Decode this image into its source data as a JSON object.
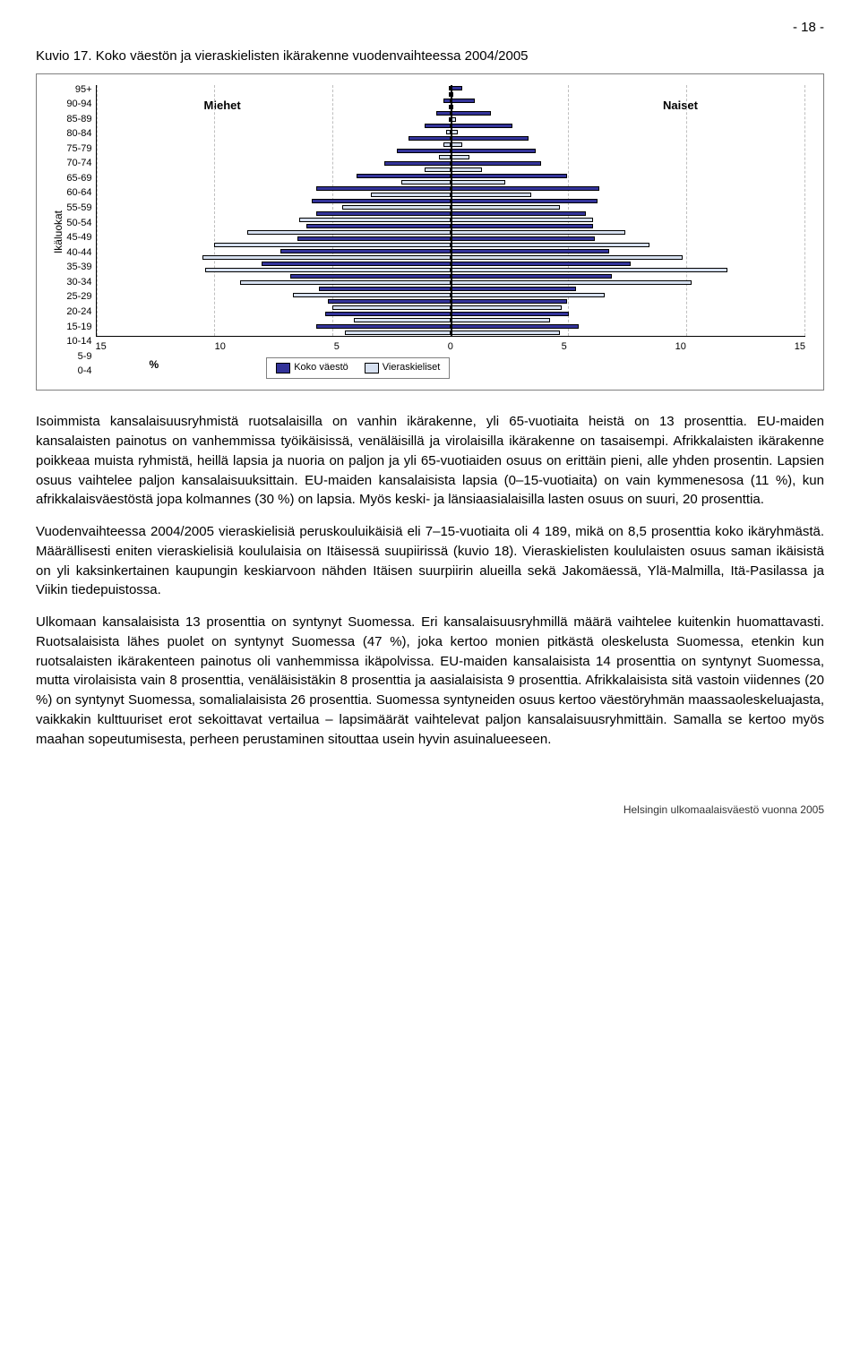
{
  "page_number": "- 18 -",
  "chart": {
    "title": "Kuvio 17. Koko väestön ja vieraskielisten ikärakenne vuodenvaihteessa 2004/2005",
    "y_label": "Ikäluokat",
    "x_unit": "%",
    "miehet_label": "Miehet",
    "naiset_label": "Naiset",
    "legend_pop": "Koko väestö",
    "legend_for": "Vieraskieliset",
    "age_groups": [
      "95+",
      "90-94",
      "85-89",
      "80-84",
      "75-79",
      "70-74",
      "65-69",
      "60-64",
      "55-59",
      "50-54",
      "45-49",
      "40-44",
      "35-39",
      "30-34",
      "25-29",
      "20-24",
      "15-19",
      "10-14",
      "5-9",
      "0-4"
    ],
    "x_ticks": [
      "15",
      "10",
      "5",
      "0",
      "5",
      "10",
      "15"
    ],
    "x_max": 15,
    "colors": {
      "pop_fill": "#333399",
      "for_fill": "#d6e0f0",
      "border": "#000000",
      "grid": "#bfbfbf",
      "box_border": "#808080",
      "background": "#ffffff"
    },
    "series": {
      "pop_male": [
        0.1,
        0.3,
        0.6,
        1.1,
        1.8,
        2.3,
        2.8,
        4.0,
        5.7,
        5.9,
        5.7,
        6.1,
        6.5,
        7.2,
        8.0,
        6.8,
        5.6,
        5.2,
        5.3,
        5.7
      ],
      "pop_female": [
        0.5,
        1.0,
        1.7,
        2.6,
        3.3,
        3.6,
        3.8,
        4.9,
        6.3,
        6.2,
        5.7,
        6.0,
        6.1,
        6.7,
        7.6,
        6.8,
        5.3,
        4.9,
        5.0,
        5.4
      ],
      "for_male": [
        0.0,
        0.1,
        0.1,
        0.2,
        0.3,
        0.5,
        1.1,
        2.1,
        3.4,
        4.6,
        6.4,
        8.6,
        10.0,
        10.5,
        10.4,
        8.9,
        6.7,
        5.0,
        4.1,
        4.5
      ],
      "for_female": [
        0.1,
        0.1,
        0.2,
        0.3,
        0.5,
        0.8,
        1.3,
        2.3,
        3.4,
        4.6,
        6.0,
        7.4,
        8.4,
        9.8,
        11.7,
        10.2,
        6.5,
        4.7,
        4.2,
        4.6
      ]
    }
  },
  "paragraphs": {
    "p1": "Isoimmista kansalaisuusryhmistä ruotsalaisilla on vanhin ikärakenne, yli 65-vuotiaita heistä on 13 prosenttia. EU-maiden kansalaisten painotus on vanhemmissa työikäisissä, venäläisillä ja virolaisilla ikärakenne on tasaisempi. Afrikkalaisten ikärakenne poikkeaa muista ryhmistä, heillä lapsia ja nuoria on paljon ja yli 65-vuotiaiden osuus on erittäin pieni, alle yhden prosentin. Lapsien osuus vaihtelee paljon kansalaisuuksittain. EU-maiden kansalaisista lapsia (0–15-vuotiaita) on vain kymmenesosa (11 %), kun afrikkalaisväestöstä jopa kolmannes (30 %) on lapsia. Myös keski- ja länsiaasialaisilla lasten osuus on suuri, 20 prosenttia.",
    "p2": "Vuodenvaihteessa 2004/2005 vieraskielisiä peruskouluikäisiä eli 7–15-vuotiaita oli 4 189, mikä on 8,5 prosenttia koko ikäryhmästä. Määrällisesti eniten vieraskielisiä koululaisia on Itäisessä suupiirissä (kuvio 18). Vieraskielisten koululaisten osuus saman ikäisistä on yli kaksinkertainen kaupungin keskiarvoon nähden Itäisen suurpiirin alueilla sekä Jakomäessä, Ylä-Malmilla, Itä-Pasilassa ja Viikin tiedepuistossa.",
    "p3": "Ulkomaan kansalaisista 13 prosenttia on syntynyt Suomessa. Eri kansalaisuusryhmillä määrä vaihtelee kuitenkin huomattavasti. Ruotsalaisista lähes puolet on syntynyt Suomessa (47 %), joka kertoo monien pitkästä oleskelusta Suomessa, etenkin kun ruotsalaisten ikärakenteen painotus oli vanhemmissa ikäpolvissa. EU-maiden kansalaisista 14 prosenttia on syntynyt Suomessa, mutta virolaisista vain 8 prosenttia, venäläisistäkin 8 prosenttia ja aasialaisista 9 prosenttia. Afrikkalaisista sitä vastoin viidennes (20 %) on syntynyt Suomessa, somalialaisista 26 prosenttia. Suomessa syntyneiden osuus kertoo väestöryhmän maassaoleskeluajasta, vaikkakin kulttuuriset erot sekoittavat vertailua – lapsimäärät vaihtelevat paljon kansalaisuusryhmittäin. Samalla se kertoo myös maahan sopeutumisesta, perheen perustaminen sitouttaa usein hyvin asuinalueeseen."
  },
  "footer": "Helsingin ulkomaalaisväestö vuonna 2005"
}
